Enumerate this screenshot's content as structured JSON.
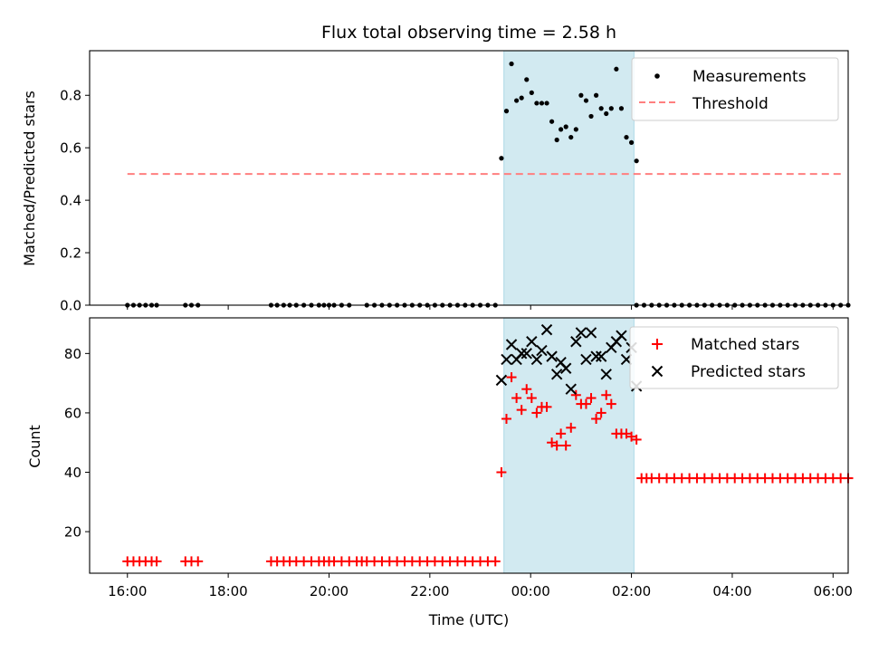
{
  "colors": {
    "measurements": "#000000",
    "threshold": "#ff7f7f",
    "matched": "#ff0000",
    "predicted": "#000000",
    "shade": "#add8e6"
  },
  "chart_data": [
    {
      "type": "scatter",
      "title": "Flux total observing time = 2.58 h",
      "xlabel": "",
      "ylabel": "Matched/Predicted stars",
      "ylim": [
        0,
        0.97
      ],
      "xlim": [
        -0.75,
        14.3
      ],
      "yticks": [
        0.0,
        0.2,
        0.4,
        0.6,
        0.8
      ],
      "ytick_labels": [
        "0.0",
        "0.2",
        "0.4",
        "0.6",
        "0.8"
      ],
      "shaded_span": [
        7.47,
        10.05
      ],
      "legend": {
        "placement": "top-right",
        "entries": [
          "Measurements",
          "Threshold"
        ]
      },
      "series": [
        {
          "name": "Measurements",
          "marker": "dot",
          "x": [
            7.42,
            7.52,
            7.62,
            7.72,
            7.82,
            7.92,
            8.02,
            8.12,
            8.22,
            8.32,
            8.42,
            8.52,
            8.6,
            8.7,
            8.8,
            8.9,
            9.0,
            9.1,
            9.2,
            9.3,
            9.4,
            9.5,
            9.6,
            9.7,
            9.8,
            9.9,
            10.0,
            10.1
          ],
          "y": [
            0.56,
            0.74,
            0.92,
            0.78,
            0.79,
            0.86,
            0.81,
            0.77,
            0.77,
            0.77,
            0.7,
            0.63,
            0.67,
            0.68,
            0.64,
            0.67,
            0.8,
            0.78,
            0.72,
            0.8,
            0.75,
            0.73,
            0.75,
            0.9,
            0.75,
            0.64,
            0.62,
            0.55
          ]
        },
        {
          "name": "Threshold",
          "style": "dashed",
          "x": [
            0,
            14.2
          ],
          "y": [
            0.5,
            0.5
          ]
        },
        {
          "name": "zeros",
          "marker": "dot",
          "x": [
            0.0,
            0.12,
            0.24,
            0.36,
            0.48,
            0.58,
            1.15,
            1.27,
            1.4,
            2.85,
            2.97,
            3.1,
            3.22,
            3.35,
            3.5,
            3.65,
            3.8,
            3.9,
            4.0,
            4.1,
            4.25,
            4.4,
            4.75,
            4.9,
            5.05,
            5.2,
            5.35,
            5.5,
            5.65,
            5.8,
            5.95,
            6.1,
            6.25,
            6.4,
            6.55,
            6.7,
            6.85,
            7.0,
            7.15,
            7.3,
            10.1,
            10.25,
            10.4,
            10.55,
            10.7,
            10.85,
            11.0,
            11.15,
            11.3,
            11.45,
            11.6,
            11.75,
            11.9,
            12.05,
            12.2,
            12.35,
            12.5,
            12.65,
            12.8,
            12.95,
            13.1,
            13.25,
            13.4,
            13.55,
            13.7,
            13.85,
            14.0,
            14.15,
            14.3
          ],
          "y": "all 0"
        }
      ]
    },
    {
      "type": "scatter",
      "title": "",
      "xlabel": "Time (UTC)",
      "ylabel": "Count",
      "ylim": [
        6,
        92
      ],
      "xlim": [
        -0.75,
        14.3
      ],
      "xticks": [
        0,
        2,
        4,
        6,
        8,
        10,
        12,
        14
      ],
      "xtick_labels": [
        "16:00",
        "18:00",
        "20:00",
        "22:00",
        "00:00",
        "02:00",
        "04:00",
        "06:00"
      ],
      "yticks": [
        20,
        40,
        60,
        80
      ],
      "ytick_labels": [
        "20",
        "40",
        "60",
        "80"
      ],
      "shaded_span": [
        7.47,
        10.05
      ],
      "legend": {
        "placement": "top-right",
        "entries": [
          "Matched stars",
          "Predicted stars"
        ]
      },
      "series": [
        {
          "name": "Matched stars",
          "marker": "plus",
          "x": [
            0.0,
            0.12,
            0.24,
            0.36,
            0.48,
            0.58,
            1.15,
            1.27,
            1.4,
            2.85,
            2.97,
            3.1,
            3.22,
            3.35,
            3.5,
            3.65,
            3.8,
            3.9,
            4.0,
            4.1,
            4.25,
            4.4,
            4.55,
            4.65,
            4.75,
            4.9,
            5.05,
            5.2,
            5.35,
            5.5,
            5.65,
            5.8,
            5.95,
            6.1,
            6.25,
            6.4,
            6.55,
            6.7,
            6.85,
            7.0,
            7.15,
            7.3,
            7.42,
            7.52,
            7.62,
            7.72,
            7.82,
            7.92,
            8.02,
            8.12,
            8.22,
            8.32,
            8.42,
            8.52,
            8.6,
            8.7,
            8.8,
            8.9,
            9.0,
            9.1,
            9.2,
            9.3,
            9.4,
            9.5,
            9.6,
            9.7,
            9.8,
            9.9,
            10.0,
            10.1,
            10.2,
            10.3,
            10.4,
            10.55,
            10.7,
            10.85,
            11.0,
            11.15,
            11.3,
            11.45,
            11.6,
            11.75,
            11.9,
            12.05,
            12.2,
            12.35,
            12.5,
            12.65,
            12.8,
            12.95,
            13.1,
            13.25,
            13.4,
            13.55,
            13.7,
            13.85,
            14.0,
            14.15,
            14.3
          ],
          "y": [
            10,
            10,
            10,
            10,
            10,
            10,
            10,
            10,
            10,
            10,
            10,
            10,
            10,
            10,
            10,
            10,
            10,
            10,
            10,
            10,
            10,
            10,
            10,
            10,
            10,
            10,
            10,
            10,
            10,
            10,
            10,
            10,
            10,
            10,
            10,
            10,
            10,
            10,
            10,
            10,
            10,
            10,
            40,
            58,
            72,
            65,
            61,
            68,
            65,
            60,
            62,
            62,
            50,
            49,
            53,
            49,
            55,
            66,
            63,
            63,
            65,
            58,
            60,
            66,
            63,
            53,
            53,
            53,
            52,
            51,
            38,
            38,
            38,
            38,
            38,
            38,
            38,
            38,
            38,
            38,
            38,
            38,
            38,
            38,
            38,
            38,
            38,
            38,
            38,
            38,
            38,
            38,
            38,
            38,
            38,
            38,
            38,
            38,
            38
          ]
        },
        {
          "name": "Predicted stars",
          "marker": "x",
          "x": [
            7.42,
            7.52,
            7.62,
            7.72,
            7.82,
            7.92,
            8.02,
            8.12,
            8.22,
            8.32,
            8.42,
            8.52,
            8.6,
            8.7,
            8.8,
            8.9,
            9.0,
            9.1,
            9.2,
            9.3,
            9.4,
            9.5,
            9.6,
            9.7,
            9.8,
            9.9,
            10.0,
            10.1
          ],
          "y": [
            71,
            78,
            83,
            78,
            80,
            80,
            84,
            78,
            81,
            88,
            79,
            73,
            77,
            75,
            68,
            84,
            87,
            78,
            87,
            79,
            79,
            73,
            82,
            84,
            86,
            78,
            82,
            69
          ]
        }
      ]
    }
  ]
}
